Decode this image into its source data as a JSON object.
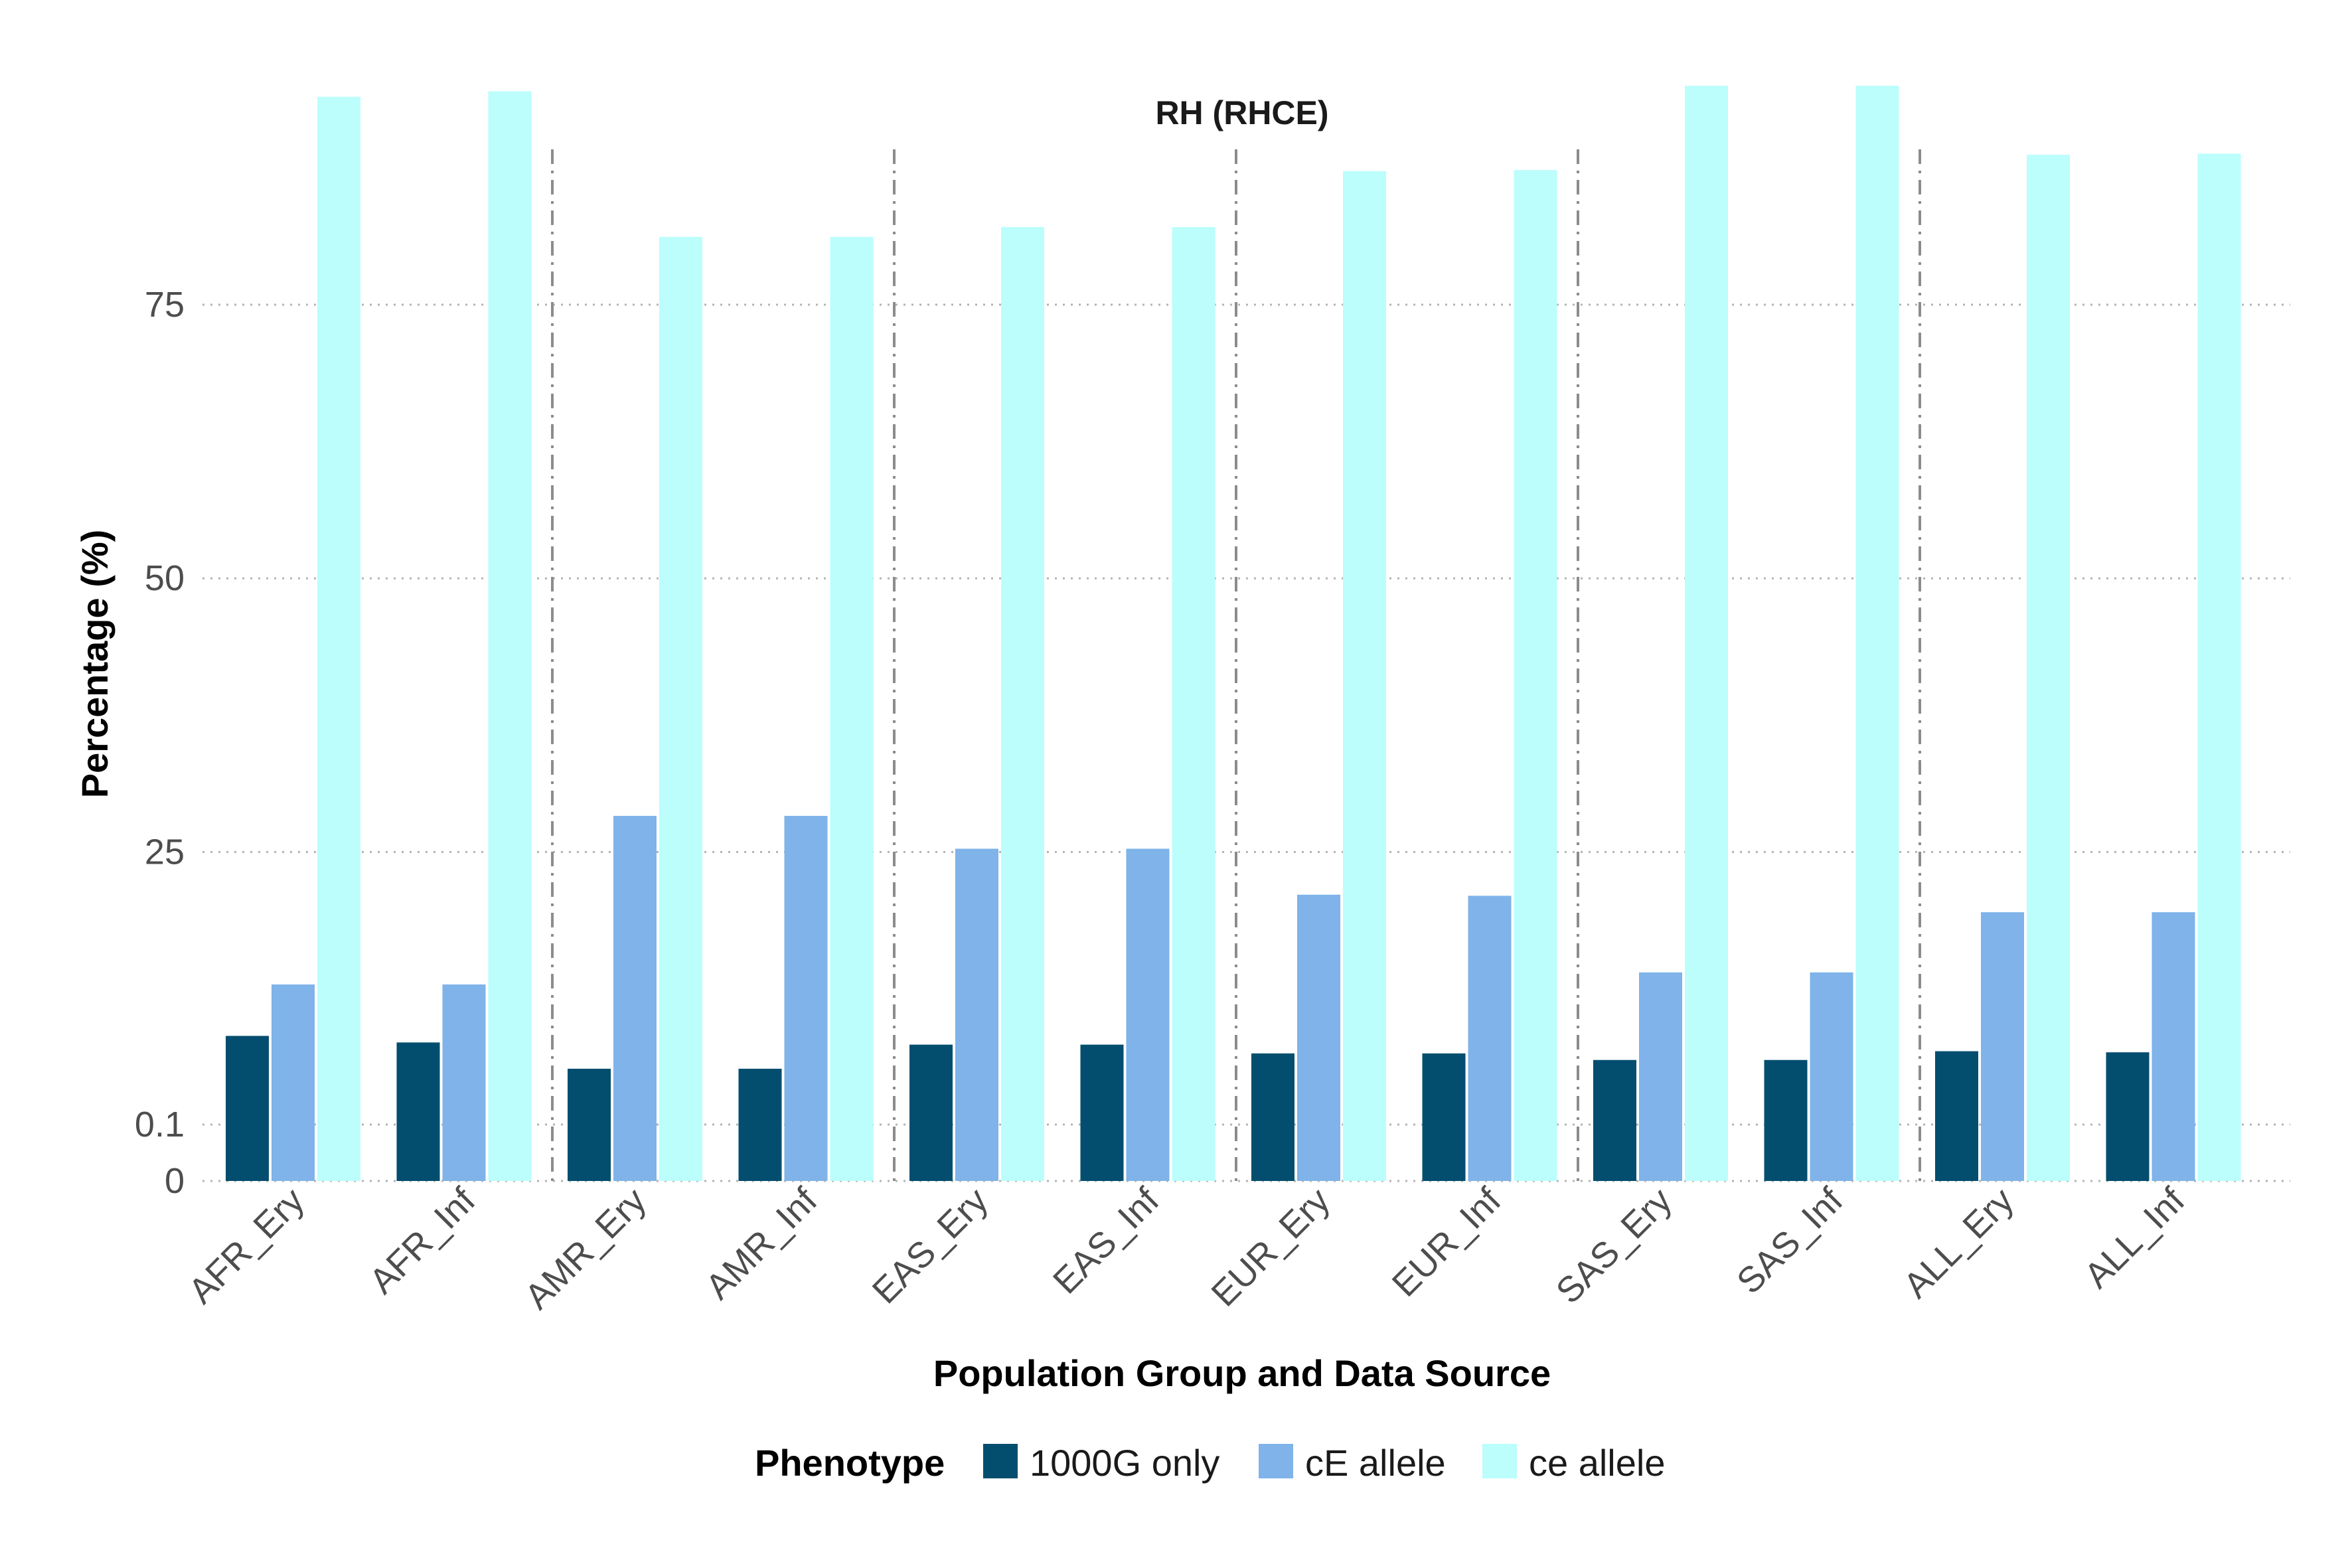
{
  "chart_data": {
    "type": "bar",
    "title": "RH (RHCE)",
    "xlabel": "Population Group and Data Source",
    "ylabel": "Percentage (%)",
    "ylim": [
      0,
      95
    ],
    "y_ticks": [
      0,
      0.1,
      25,
      50,
      75
    ],
    "y_tick_labels": [
      "0",
      "0.1",
      "25",
      "50",
      "75"
    ],
    "grid": "horizontal dotted",
    "legend_title": "Phenotype",
    "legend_position": "bottom",
    "categories": [
      "AFR_Ery",
      "AFR_Inf",
      "AMR_Ery",
      "AMR_Inf",
      "EAS_Ery",
      "EAS_Inf",
      "EUR_Ery",
      "EUR_Inf",
      "SAS_Ery",
      "SAS_Inf",
      "ALL_Ery",
      "ALL_Inf"
    ],
    "group_separators_after": [
      1,
      3,
      5,
      7,
      9
    ],
    "series": [
      {
        "name": "1000G only",
        "color": "#034e6e",
        "values": [
          8.2,
          7.6,
          5.2,
          5.2,
          7.4,
          7.4,
          6.6,
          6.6,
          6.0,
          6.0,
          6.8,
          6.7
        ]
      },
      {
        "name": "cE allele",
        "color": "#7fb3e9",
        "values": [
          12.9,
          12.9,
          28.3,
          28.3,
          25.3,
          25.3,
          21.1,
          21.0,
          14.0,
          14.0,
          19.5,
          19.5
        ]
      },
      {
        "name": "ce allele",
        "color": "#bbfefc",
        "values": [
          94.0,
          94.5,
          81.2,
          81.2,
          82.1,
          82.1,
          87.2,
          87.3,
          95.0,
          95.0,
          88.7,
          88.8
        ]
      }
    ]
  }
}
